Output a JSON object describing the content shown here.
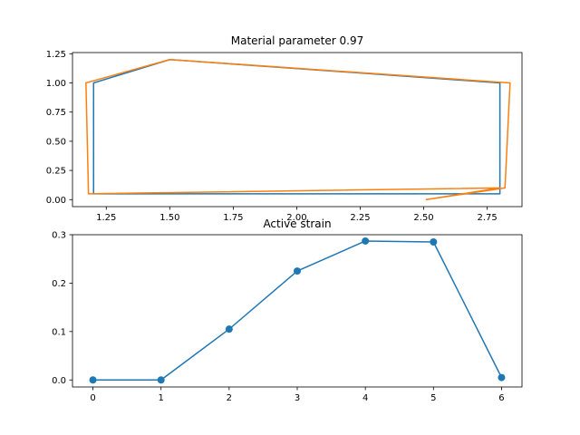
{
  "chart_data": [
    {
      "type": "line",
      "title": "Material parameter 0.97",
      "xlabel": "",
      "ylabel": "",
      "xlim": [
        1.117,
        2.887
      ],
      "ylim": [
        -0.06,
        1.26
      ],
      "xticks": [
        1.25,
        1.5,
        1.75,
        2.0,
        2.25,
        2.5,
        2.75
      ],
      "xtick_labels": [
        "1.25",
        "1.50",
        "1.75",
        "2.00",
        "2.25",
        "2.50",
        "2.75"
      ],
      "yticks": [
        0.0,
        0.25,
        0.5,
        0.75,
        1.0,
        1.25
      ],
      "ytick_labels": [
        "0.00",
        "0.25",
        "0.50",
        "0.75",
        "1.00",
        "1.25"
      ],
      "grid": false,
      "series": [
        {
          "color": "#1f77b4",
          "x": [
            1.2,
            1.2,
            1.5,
            2.8,
            2.8,
            1.2
          ],
          "y": [
            0.05,
            1.0,
            1.2,
            1.0,
            0.05,
            0.05
          ]
        },
        {
          "color": "#ff7f0e",
          "x": [
            1.17,
            1.5,
            2.84,
            2.82,
            2.51,
            2.8,
            1.18,
            1.17
          ],
          "y": [
            1.0,
            1.2,
            1.0,
            0.1,
            0.0,
            0.1,
            0.05,
            1.0
          ]
        }
      ]
    },
    {
      "type": "line",
      "title": "Active strain",
      "xlabel": "",
      "ylabel": "",
      "xlim": [
        -0.3,
        6.3
      ],
      "ylim": [
        -0.0145,
        0.3
      ],
      "xticks": [
        0,
        1,
        2,
        3,
        4,
        5,
        6
      ],
      "xtick_labels": [
        "0",
        "1",
        "2",
        "3",
        "4",
        "5",
        "6"
      ],
      "yticks": [
        0.0,
        0.1,
        0.2,
        0.3
      ],
      "ytick_labels": [
        "0.0",
        "0.1",
        "0.2",
        "0.3"
      ],
      "grid": false,
      "markers": true,
      "series": [
        {
          "color": "#1f77b4",
          "x": [
            0,
            1,
            2,
            3,
            4,
            5,
            6
          ],
          "y": [
            0.0,
            0.0,
            0.105,
            0.225,
            0.287,
            0.285,
            0.005
          ]
        }
      ]
    }
  ]
}
